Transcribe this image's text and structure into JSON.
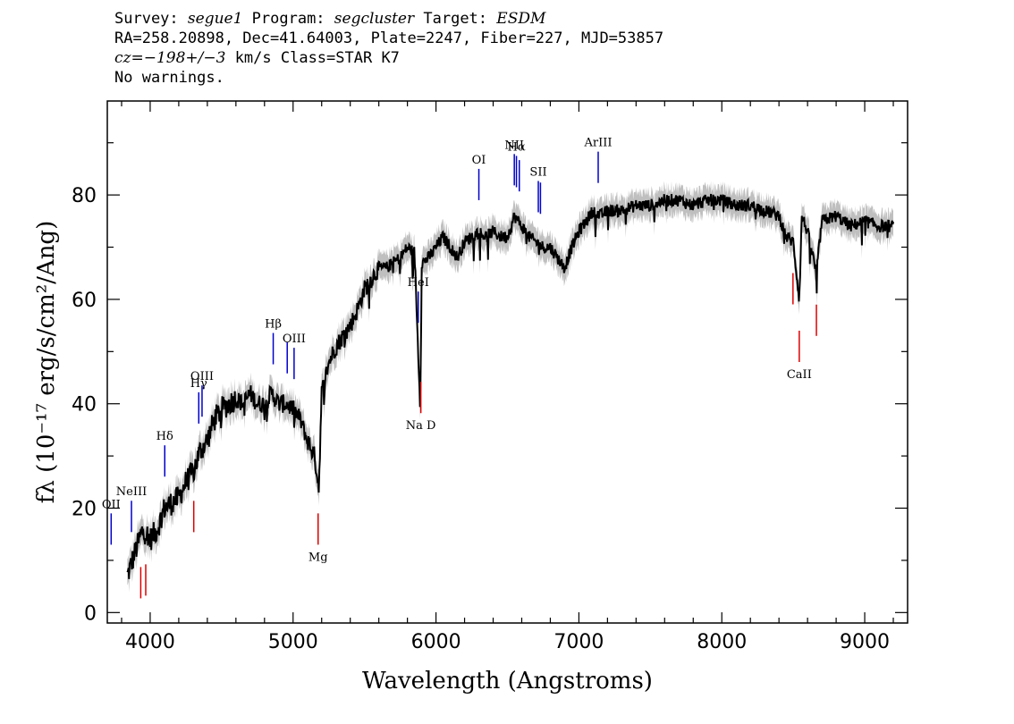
{
  "header": {
    "survey_label": "Survey:",
    "survey": "segue1",
    "program_label": "Program:",
    "program": "segcluster",
    "target_label": "Target:",
    "target": "ESDM",
    "line2": "RA=258.20898, Dec=41.64003, Plate=2247, Fiber=227, MJD=53857",
    "cz": "cz=−198+/−3",
    "cz_rest": " km/s Class=STAR K7",
    "warnings": "No warnings."
  },
  "chart_data": {
    "type": "line",
    "xlabel": "Wavelength (Angstroms)",
    "ylabel": "fλ (10⁻¹⁷ erg/s/cm²/Ang)",
    "xlim": [
      3700,
      9300
    ],
    "ylim": [
      -2,
      98
    ],
    "x_ticks": [
      4000,
      5000,
      6000,
      7000,
      8000,
      9000
    ],
    "y_ticks": [
      0,
      20,
      40,
      60,
      80
    ],
    "colors": {
      "spectrum": "#000000",
      "error": "#bfbfbf",
      "emission": "#0000cc",
      "absorption": "#dd0000"
    },
    "spectrum": {
      "x": [
        3840,
        3900,
        3950,
        4000,
        4050,
        4100,
        4150,
        4200,
        4250,
        4300,
        4350,
        4400,
        4450,
        4500,
        4550,
        4600,
        4650,
        4700,
        4750,
        4800,
        4850,
        4900,
        4950,
        5000,
        5050,
        5100,
        5150,
        5180,
        5200,
        5250,
        5300,
        5350,
        5400,
        5450,
        5500,
        5550,
        5600,
        5650,
        5700,
        5750,
        5800,
        5850,
        5890,
        5900,
        5950,
        6000,
        6050,
        6100,
        6150,
        6200,
        6250,
        6300,
        6350,
        6400,
        6450,
        6500,
        6550,
        6600,
        6650,
        6700,
        6750,
        6800,
        6850,
        6900,
        6950,
        7000,
        7050,
        7100,
        7150,
        7200,
        7300,
        7400,
        7500,
        7600,
        7700,
        7800,
        7900,
        8000,
        8100,
        8200,
        8300,
        8400,
        8450,
        8500,
        8542,
        8560,
        8600,
        8662,
        8700,
        8800,
        8900,
        9000,
        9100,
        9200
      ],
      "y": [
        7,
        12,
        16,
        14,
        16,
        20,
        21,
        22,
        25,
        27,
        31,
        33,
        37,
        39,
        40,
        41,
        40,
        42,
        40,
        40,
        42,
        40,
        40,
        39,
        37,
        33,
        30,
        24,
        42,
        48,
        51,
        53,
        55,
        58,
        62,
        64,
        66,
        66,
        67,
        68,
        70,
        69,
        39,
        67,
        68,
        70,
        72,
        70,
        68,
        71,
        72,
        73,
        72,
        73,
        72,
        72,
        76,
        74,
        72,
        71,
        70,
        70,
        68,
        66,
        70,
        73,
        75,
        77,
        76,
        77,
        77,
        78,
        78,
        79,
        79,
        78,
        79,
        79,
        78,
        78,
        77,
        76,
        72,
        71,
        60,
        76,
        73,
        65,
        75,
        76,
        74,
        75,
        74,
        74
      ]
    },
    "emission_lines": [
      {
        "name": "OII",
        "x": 3727,
        "label": "OII"
      },
      {
        "name": "NeIII",
        "x": 3869,
        "label": "NeIII"
      },
      {
        "name": "Hdelta",
        "x": 4102,
        "label": "Hδ"
      },
      {
        "name": "Hgamma",
        "x": 4340,
        "label": "Hγ"
      },
      {
        "name": "OIII4363",
        "x": 4363,
        "label": "OIII"
      },
      {
        "name": "Hbeta",
        "x": 4861,
        "label": "Hβ"
      },
      {
        "name": "OIII4959",
        "x": 4959,
        "label": ""
      },
      {
        "name": "OIII5007",
        "x": 5007,
        "label": "OIII"
      },
      {
        "name": "HeI",
        "x": 5876,
        "label": "HeI"
      },
      {
        "name": "OI",
        "x": 6300,
        "label": "OI"
      },
      {
        "name": "NII6548",
        "x": 6548,
        "label": "NII"
      },
      {
        "name": "Halpha",
        "x": 6563,
        "label": "Hα"
      },
      {
        "name": "NII6583",
        "x": 6583,
        "label": ""
      },
      {
        "name": "SII6716",
        "x": 6716,
        "label": "SII"
      },
      {
        "name": "SII6731",
        "x": 6731,
        "label": ""
      },
      {
        "name": "ArIII",
        "x": 7135,
        "label": "ArIII"
      }
    ],
    "absorption_lines": [
      {
        "name": "K",
        "x": 3934,
        "label": ""
      },
      {
        "name": "H",
        "x": 3969,
        "label": ""
      },
      {
        "name": "G",
        "x": 4305,
        "label": ""
      },
      {
        "name": "Mg",
        "x": 5175,
        "label": "Mg"
      },
      {
        "name": "NaD",
        "x": 5894,
        "label": "Na D"
      },
      {
        "name": "CaII8498",
        "x": 8498,
        "label": ""
      },
      {
        "name": "CaII8542",
        "x": 8542,
        "label": "CaII"
      },
      {
        "name": "CaII8662",
        "x": 8662,
        "label": ""
      }
    ]
  }
}
